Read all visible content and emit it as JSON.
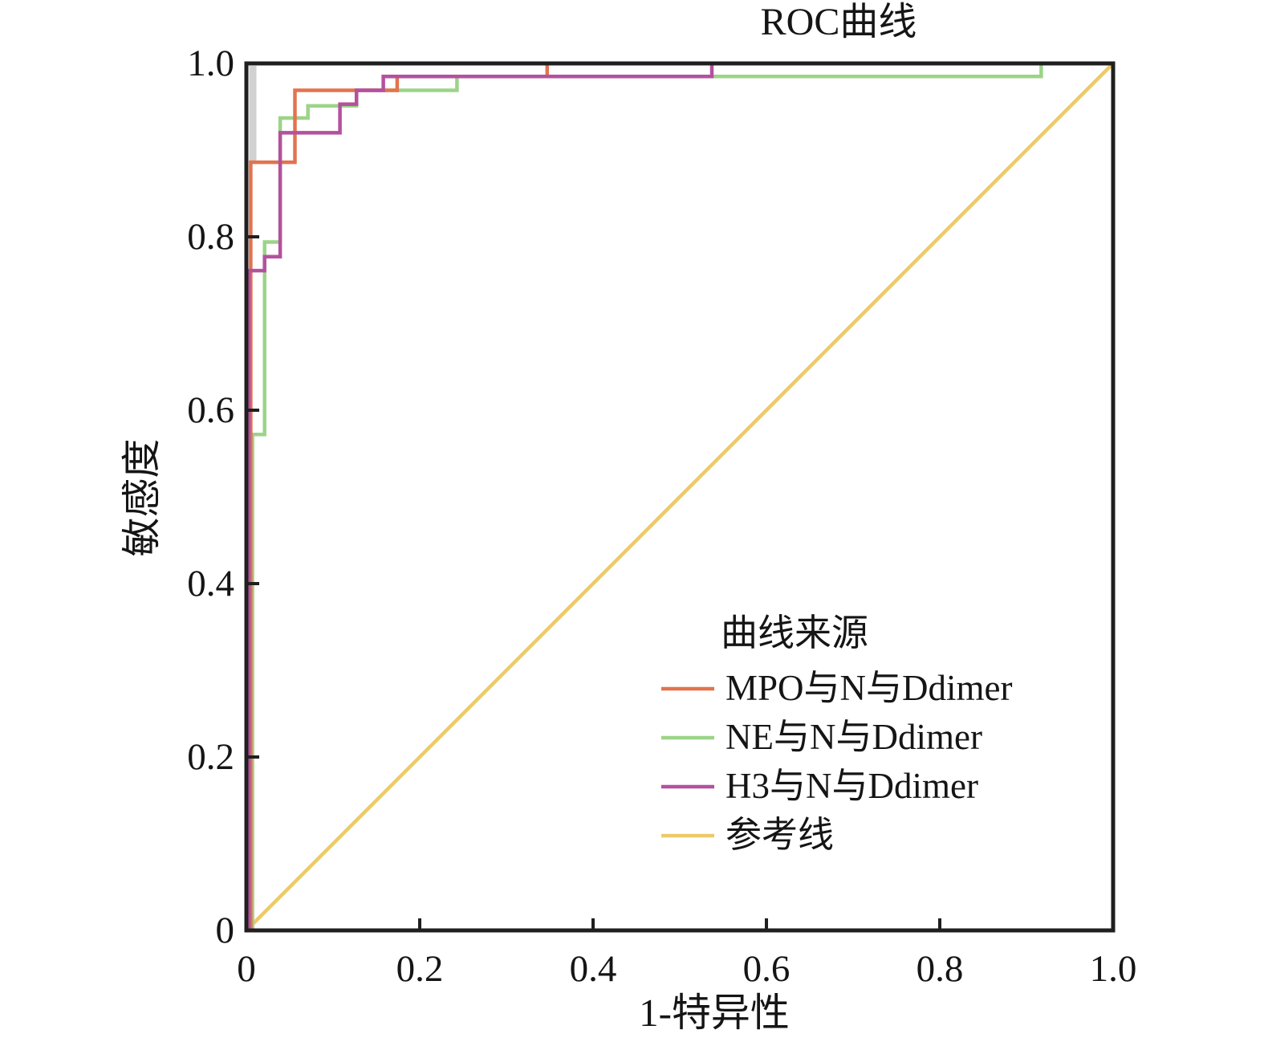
{
  "chart_data": {
    "type": "line",
    "subtype": "roc-step-curves",
    "title": "ROC曲线",
    "xlabel": "1-特异性",
    "ylabel": "敏感度",
    "xlim": [
      0,
      1
    ],
    "ylim": [
      0,
      1
    ],
    "grid": false,
    "x_tick_labels": [
      "0",
      "0.2",
      "0.4",
      "0.6",
      "0.8",
      "1.0"
    ],
    "y_tick_labels": [
      "0",
      "0.2",
      "0.4",
      "0.6",
      "0.8",
      "1.0"
    ],
    "legend_title": "曲线来源",
    "legend_position": "inside-lower-right",
    "draw_order": [
      3,
      1,
      0,
      2
    ],
    "series": [
      {
        "name": "MPO与N与Ddimer",
        "color": "#e2734f",
        "points": [
          [
            0.005,
            0
          ],
          [
            0.005,
            0.886
          ],
          [
            0.056,
            0.886
          ],
          [
            0.056,
            0.969
          ],
          [
            0.174,
            0.969
          ],
          [
            0.174,
            0.985
          ],
          [
            0.347,
            0.985
          ],
          [
            0.347,
            1
          ],
          [
            1,
            1
          ]
        ]
      },
      {
        "name": "NE与N与Ddimer",
        "color": "#9cd488",
        "points": [
          [
            0.007,
            0
          ],
          [
            0.007,
            0.572
          ],
          [
            0.021,
            0.572
          ],
          [
            0.021,
            0.794
          ],
          [
            0.039,
            0.794
          ],
          [
            0.039,
            0.937
          ],
          [
            0.071,
            0.937
          ],
          [
            0.071,
            0.951
          ],
          [
            0.127,
            0.951
          ],
          [
            0.127,
            0.969
          ],
          [
            0.243,
            0.969
          ],
          [
            0.243,
            0.985
          ],
          [
            0.917,
            0.985
          ],
          [
            0.917,
            1
          ],
          [
            1,
            1
          ]
        ]
      },
      {
        "name": "H3与N与Ddimer",
        "color": "#b4519e",
        "points": [
          [
            0.003,
            0
          ],
          [
            0.003,
            0.761
          ],
          [
            0.021,
            0.761
          ],
          [
            0.021,
            0.777
          ],
          [
            0.039,
            0.777
          ],
          [
            0.039,
            0.92
          ],
          [
            0.108,
            0.92
          ],
          [
            0.108,
            0.953
          ],
          [
            0.127,
            0.953
          ],
          [
            0.127,
            0.969
          ],
          [
            0.158,
            0.969
          ],
          [
            0.158,
            0.985
          ],
          [
            0.537,
            0.985
          ],
          [
            0.537,
            1
          ],
          [
            1,
            1
          ]
        ]
      },
      {
        "name": "参考线",
        "color": "#edca68",
        "points": [
          [
            0,
            0
          ],
          [
            1,
            1
          ]
        ]
      }
    ],
    "colors": {
      "frame": "#1f1f1f",
      "text": "#151515",
      "background": "#ffffff",
      "axis_band": "#c6c6c6"
    }
  }
}
